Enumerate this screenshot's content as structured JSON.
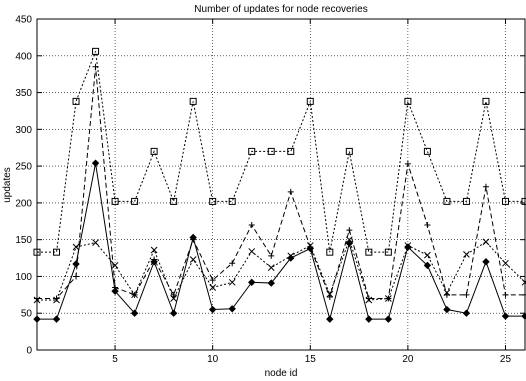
{
  "chart_data": {
    "type": "line",
    "title": "Number of updates for node recoveries",
    "xlabel": "node id",
    "ylabel": "updates",
    "xlim": [
      1,
      26
    ],
    "ylim": [
      0,
      450
    ],
    "xticks": [
      5,
      10,
      15,
      20,
      25
    ],
    "yticks": [
      0,
      50,
      100,
      150,
      200,
      250,
      300,
      350,
      400,
      450
    ],
    "grid": true,
    "x": [
      1,
      2,
      3,
      4,
      5,
      6,
      7,
      8,
      9,
      10,
      11,
      12,
      13,
      14,
      15,
      16,
      17,
      18,
      19,
      20,
      21,
      22,
      23,
      24,
      25,
      26
    ],
    "series": [
      {
        "marker": "square",
        "line_style": "dotted",
        "values": [
          133,
          133,
          338,
          406,
          202,
          202,
          270,
          202,
          338,
          202,
          202,
          270,
          270,
          270,
          338,
          133,
          270,
          133,
          133,
          338,
          270,
          202,
          202,
          338,
          202,
          202
        ]
      },
      {
        "marker": "plus",
        "line_style": "dashed",
        "values": [
          70,
          70,
          100,
          385,
          85,
          75,
          123,
          75,
          150,
          95,
          118,
          170,
          128,
          215,
          140,
          72,
          163,
          70,
          70,
          253,
          170,
          75,
          75,
          222,
          75,
          75
        ]
      },
      {
        "marker": "cross",
        "line_style": "dotted",
        "values": [
          68,
          68,
          140,
          146,
          115,
          75,
          136,
          70,
          123,
          85,
          92,
          134,
          112,
          128,
          142,
          76,
          150,
          68,
          70,
          142,
          129,
          78,
          130,
          147,
          118,
          92
        ]
      },
      {
        "marker": "diamond",
        "line_style": "solid",
        "values": [
          42,
          42,
          117,
          254,
          80,
          50,
          120,
          50,
          153,
          55,
          56,
          92,
          91,
          125,
          138,
          42,
          145,
          42,
          42,
          140,
          115,
          55,
          50,
          120,
          46,
          46
        ]
      }
    ]
  }
}
